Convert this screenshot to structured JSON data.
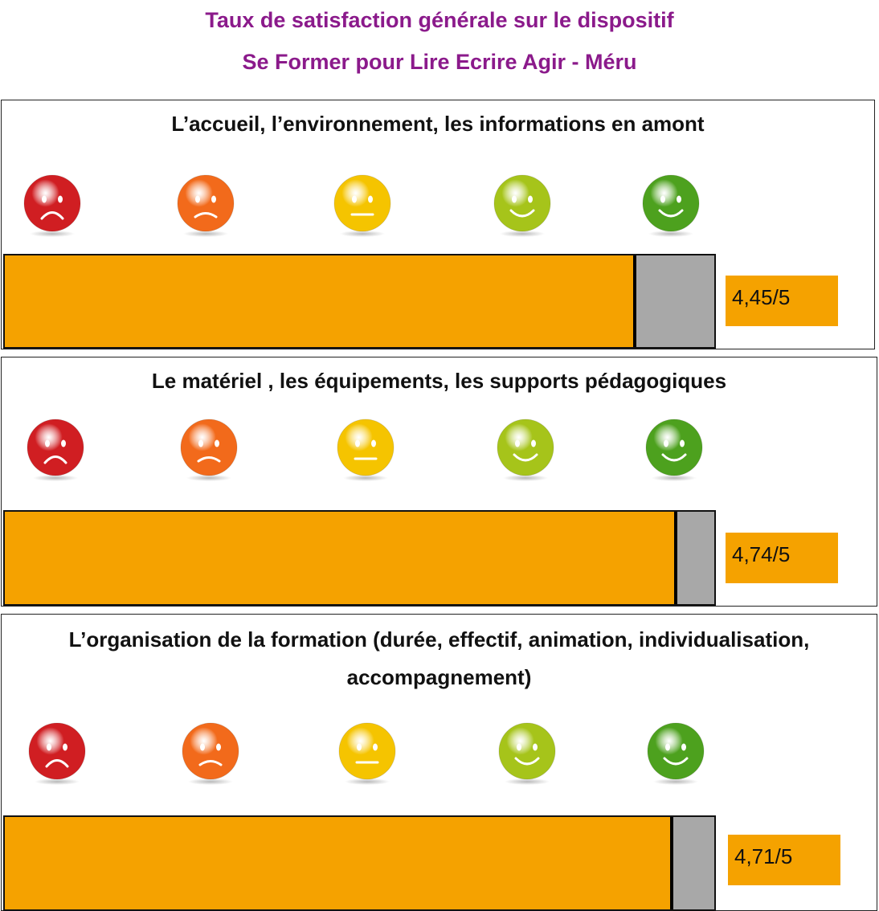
{
  "title_line1": "Taux de satisfaction générale sur le dispositif",
  "title_line2": "Se Former pour Lire Ecrire Agir - Méru",
  "face_scale": [
    {
      "name": "very-unhappy-face-icon",
      "color": "#d01e22",
      "mouth": "frown"
    },
    {
      "name": "unhappy-face-icon",
      "color": "#f26a1b",
      "mouth": "frown-light"
    },
    {
      "name": "neutral-face-icon",
      "color": "#f5c400",
      "mouth": "flat"
    },
    {
      "name": "happy-face-icon",
      "color": "#a6c41a",
      "mouth": "smile"
    },
    {
      "name": "very-happy-face-icon",
      "color": "#4da11e",
      "mouth": "smile"
    }
  ],
  "chart_data": [
    {
      "type": "bar",
      "title": "L’accueil, l’environnement, les informations en amont",
      "value": 4.45,
      "max": 5,
      "label": "4,45/5"
    },
    {
      "type": "bar",
      "title": "Le matériel , les équipements, les supports pédagogiques",
      "value": 4.74,
      "max": 5,
      "label": "4,74/5"
    },
    {
      "type": "bar",
      "title_line1": "L’organisation de la formation (durée, effectif, animation, individualisation,",
      "title_line2": "accompagnement)",
      "value": 4.71,
      "max": 5,
      "label": "4,71/5"
    }
  ]
}
